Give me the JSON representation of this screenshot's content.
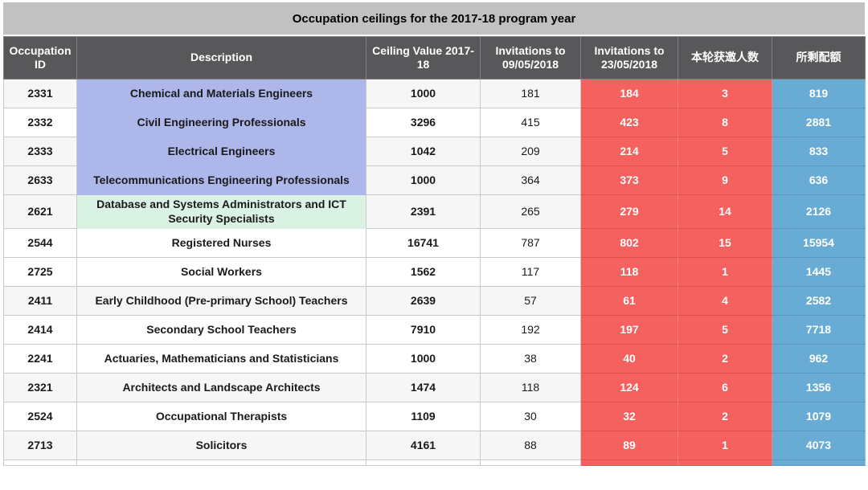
{
  "title": "Occupation ceilings for the 2017-18 program year",
  "colors": {
    "title_bar": "#c1c1c1",
    "header_bg": "#58585a",
    "invitation_red": "#f4615e",
    "remaining_blue": "#68acd5",
    "engineering_highlight_purple": "#adb7ea",
    "ict_highlight_green": "#d9f2e4",
    "zebra_row": "#f6f6f6"
  },
  "chart_data": {
    "type": "table",
    "title": "Occupation ceilings for the 2017-18 program year",
    "columns": [
      "Occupation ID",
      "Description",
      "Ceiling Value 2017-18",
      "Invitations to 09/05/2018",
      "Invitations to 23/05/2018",
      "本轮获邀人数",
      "所剩配额"
    ],
    "rows": [
      {
        "id": "2331",
        "description": "Chemical and Materials Engineers",
        "ceiling": "1000",
        "inv_0905": "181",
        "inv_2305": "184",
        "round_invited": "3",
        "remaining": "819",
        "highlight": "purple",
        "shaded": true
      },
      {
        "id": "2332",
        "description": "Civil Engineering Professionals",
        "ceiling": "3296",
        "inv_0905": "415",
        "inv_2305": "423",
        "round_invited": "8",
        "remaining": "2881",
        "highlight": "purple",
        "shaded": false
      },
      {
        "id": "2333",
        "description": "Electrical Engineers",
        "ceiling": "1042",
        "inv_0905": "209",
        "inv_2305": "214",
        "round_invited": "5",
        "remaining": "833",
        "highlight": "purple",
        "shaded": true
      },
      {
        "id": "2633",
        "description": "Telecommunications Engineering Professionals",
        "ceiling": "1000",
        "inv_0905": "364",
        "inv_2305": "373",
        "round_invited": "9",
        "remaining": "636",
        "highlight": "purple",
        "shaded": true
      },
      {
        "id": "2621",
        "description": "Database and Systems Administrators and ICT Security Specialists",
        "ceiling": "2391",
        "inv_0905": "265",
        "inv_2305": "279",
        "round_invited": "14",
        "remaining": "2126",
        "highlight": "green",
        "shaded": true
      },
      {
        "id": "2544",
        "description": "Registered Nurses",
        "ceiling": "16741",
        "inv_0905": "787",
        "inv_2305": "802",
        "round_invited": "15",
        "remaining": "15954",
        "highlight": null,
        "shaded": false
      },
      {
        "id": "2725",
        "description": "Social Workers",
        "ceiling": "1562",
        "inv_0905": "117",
        "inv_2305": "118",
        "round_invited": "1",
        "remaining": "1445",
        "highlight": null,
        "shaded": false
      },
      {
        "id": "2411",
        "description": "Early Childhood (Pre-primary School) Teachers",
        "ceiling": "2639",
        "inv_0905": "57",
        "inv_2305": "61",
        "round_invited": "4",
        "remaining": "2582",
        "highlight": null,
        "shaded": true
      },
      {
        "id": "2414",
        "description": "Secondary School Teachers",
        "ceiling": "7910",
        "inv_0905": "192",
        "inv_2305": "197",
        "round_invited": "5",
        "remaining": "7718",
        "highlight": null,
        "shaded": false
      },
      {
        "id": "2241",
        "description": "Actuaries, Mathematicians and Statisticians",
        "ceiling": "1000",
        "inv_0905": "38",
        "inv_2305": "40",
        "round_invited": "2",
        "remaining": "962",
        "highlight": null,
        "shaded": false
      },
      {
        "id": "2321",
        "description": "Architects and Landscape Architects",
        "ceiling": "1474",
        "inv_0905": "118",
        "inv_2305": "124",
        "round_invited": "6",
        "remaining": "1356",
        "highlight": null,
        "shaded": true
      },
      {
        "id": "2524",
        "description": "Occupational Therapists",
        "ceiling": "1109",
        "inv_0905": "30",
        "inv_2305": "32",
        "round_invited": "2",
        "remaining": "1079",
        "highlight": null,
        "shaded": false
      },
      {
        "id": "2713",
        "description": "Solicitors",
        "ceiling": "4161",
        "inv_0905": "88",
        "inv_2305": "89",
        "round_invited": "1",
        "remaining": "4073",
        "highlight": null,
        "shaded": true
      }
    ]
  }
}
